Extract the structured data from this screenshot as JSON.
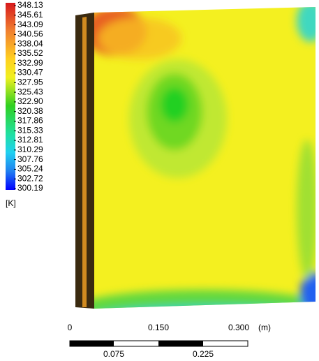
{
  "legend": {
    "labels": [
      "348.13",
      "345.61",
      "343.09",
      "340.56",
      "338.04",
      "335.52",
      "332.99",
      "330.47",
      "327.95",
      "325.43",
      "322.90",
      "320.38",
      "317.86",
      "315.33",
      "312.81",
      "310.29",
      "307.76",
      "305.24",
      "302.72",
      "300.19"
    ],
    "unit": "[K]"
  },
  "scale_bar": {
    "top_labels": [
      "0",
      "0.150",
      "0.300"
    ],
    "unit": "(m)",
    "bottom_labels": [
      "0.075",
      "0.225"
    ]
  }
}
